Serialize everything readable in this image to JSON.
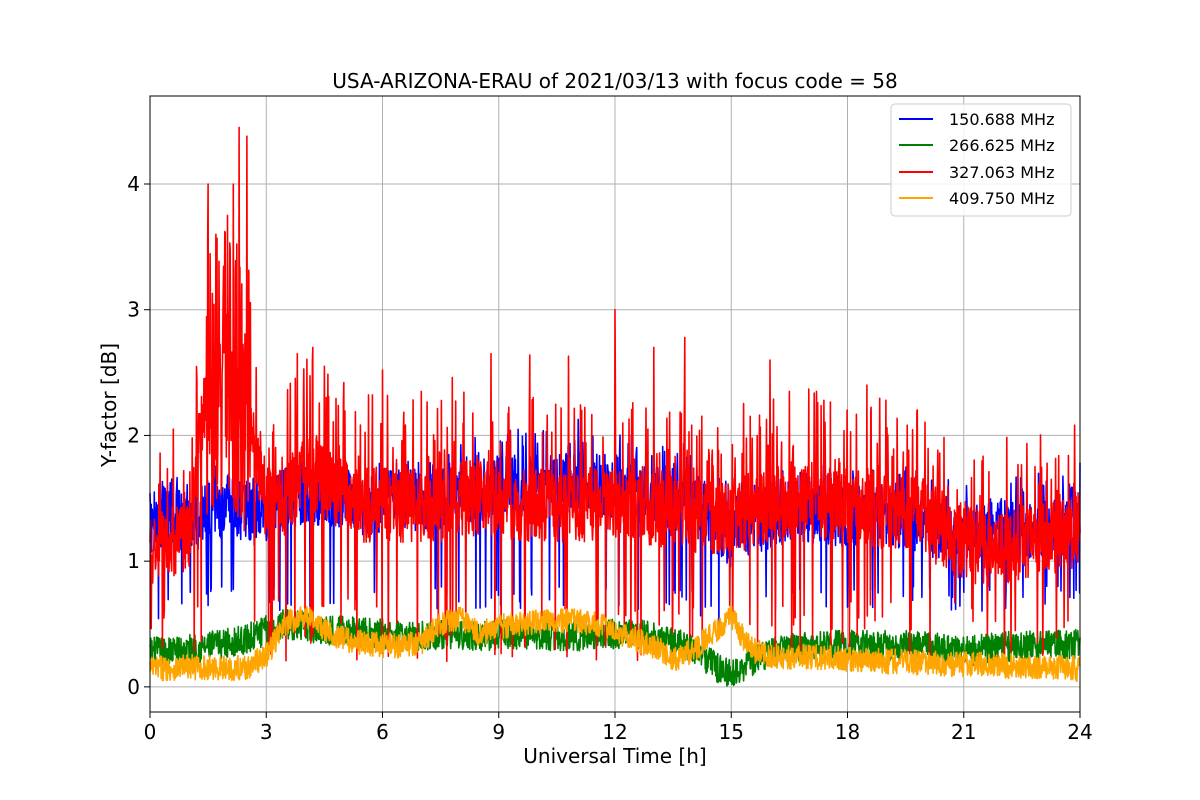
{
  "chart_data": {
    "type": "line",
    "title": "USA-ARIZONA-ERAU of 2021/03/13 with focus code = 58",
    "xlabel": "Universal Time [h]",
    "ylabel": "Y-factor [dB]",
    "xlim": [
      0,
      24
    ],
    "ylim": [
      -0.2,
      4.7
    ],
    "xticks": [
      0,
      3,
      6,
      9,
      12,
      15,
      18,
      21,
      24
    ],
    "xtick_labels": [
      "0",
      "3",
      "6",
      "9",
      "12",
      "15",
      "18",
      "21",
      "24"
    ],
    "yticks": [
      0,
      1,
      2,
      3,
      4
    ],
    "ytick_labels": [
      "0",
      "1",
      "2",
      "3",
      "4"
    ],
    "grid": true,
    "legend_position": "top-right",
    "series": [
      {
        "name": "150.688 MHz",
        "color": "#0000ff",
        "x": [
          0,
          0.5,
          1,
          1.5,
          2,
          2.5,
          3,
          3.5,
          4,
          4.5,
          5,
          5.5,
          6,
          6.5,
          7,
          7.5,
          8,
          8.5,
          9,
          9.5,
          10,
          10.5,
          11,
          11.5,
          12,
          12.5,
          13,
          13.5,
          14,
          14.5,
          15,
          15.5,
          16,
          16.5,
          17,
          17.5,
          18,
          18.5,
          19,
          19.5,
          20,
          20.5,
          21,
          21.5,
          22,
          22.5,
          23,
          23.5,
          24
        ],
        "y": [
          1.3,
          1.4,
          1.25,
          1.4,
          1.45,
          1.35,
          1.4,
          1.5,
          1.55,
          1.5,
          1.5,
          1.45,
          1.45,
          1.5,
          1.45,
          1.5,
          1.55,
          1.55,
          1.6,
          1.6,
          1.6,
          1.6,
          1.65,
          1.6,
          1.6,
          1.55,
          1.5,
          1.5,
          1.45,
          1.35,
          1.2,
          1.3,
          1.35,
          1.4,
          1.4,
          1.35,
          1.35,
          1.4,
          1.35,
          1.35,
          1.3,
          1.25,
          1.2,
          1.2,
          1.25,
          1.2,
          1.25,
          1.3,
          1.4
        ],
        "y_min": [
          0.4,
          0.6,
          0.6,
          0.6,
          0.6,
          0.6,
          0.6,
          0.6,
          0.6,
          0.6,
          0.6,
          0.6,
          0.6,
          0.6,
          0.6,
          0.6,
          0.6,
          0.6,
          0.6,
          0.6,
          0.6,
          0.6,
          0.6,
          0.6,
          0.6,
          0.6,
          0.6,
          0.6,
          0.6,
          0.45,
          0.35,
          0.6,
          0.6,
          0.6,
          0.6,
          0.6,
          0.6,
          0.6,
          0.6,
          0.6,
          0.6,
          0.6,
          0.6,
          0.6,
          0.6,
          0.6,
          0.6,
          0.6,
          0.6
        ],
        "y_max": [
          1.75,
          1.7,
          1.75,
          1.8,
          1.7,
          1.65,
          1.75,
          1.8,
          1.85,
          1.8,
          1.8,
          1.75,
          1.8,
          1.8,
          1.8,
          1.85,
          1.95,
          2.0,
          2.05,
          2.05,
          2.1,
          2.15,
          2.2,
          2.1,
          2.05,
          2.0,
          1.95,
          1.9,
          1.85,
          1.75,
          1.6,
          1.7,
          1.75,
          1.8,
          1.8,
          1.75,
          1.75,
          1.75,
          1.75,
          1.75,
          1.7,
          1.7,
          1.65,
          1.65,
          1.7,
          1.7,
          1.7,
          1.75,
          1.8
        ]
      },
      {
        "name": "266.625 MHz",
        "color": "#008000",
        "x": [
          0,
          0.5,
          1,
          1.5,
          2,
          2.5,
          3,
          3.5,
          4,
          4.5,
          5,
          5.5,
          6,
          6.5,
          7,
          7.5,
          8,
          8.5,
          9,
          9.5,
          10,
          10.5,
          11,
          11.5,
          12,
          12.5,
          13,
          13.5,
          14,
          14.5,
          15,
          15.5,
          16,
          16.5,
          17,
          17.5,
          18,
          18.5,
          19,
          19.5,
          20,
          20.5,
          21,
          21.5,
          22,
          22.5,
          23,
          23.5,
          24
        ],
        "y": [
          0.28,
          0.28,
          0.3,
          0.32,
          0.35,
          0.38,
          0.45,
          0.5,
          0.48,
          0.45,
          0.45,
          0.43,
          0.42,
          0.4,
          0.4,
          0.42,
          0.42,
          0.4,
          0.42,
          0.42,
          0.42,
          0.4,
          0.4,
          0.42,
          0.42,
          0.42,
          0.4,
          0.35,
          0.3,
          0.18,
          0.1,
          0.2,
          0.28,
          0.3,
          0.32,
          0.33,
          0.33,
          0.33,
          0.33,
          0.33,
          0.32,
          0.3,
          0.28,
          0.3,
          0.32,
          0.32,
          0.33,
          0.33,
          0.34
        ],
        "amplitude": 0.12
      },
      {
        "name": "327.063 MHz",
        "color": "#ff0000",
        "x": [
          0,
          0.5,
          1,
          1.5,
          2,
          2.5,
          3,
          3.5,
          4,
          4.5,
          5,
          5.5,
          6,
          6.5,
          7,
          7.5,
          8,
          8.5,
          9,
          9.5,
          10,
          10.5,
          11,
          11.5,
          12,
          12.5,
          13,
          13.5,
          14,
          14.5,
          15,
          15.5,
          16,
          16.5,
          17,
          17.5,
          18,
          18.5,
          19,
          19.5,
          20,
          20.5,
          21,
          21.5,
          22,
          22.5,
          23,
          23.5,
          24
        ],
        "y": [
          1.1,
          1.15,
          1.2,
          2.5,
          2.6,
          2.3,
          1.45,
          1.5,
          1.75,
          1.6,
          1.55,
          1.45,
          1.45,
          1.45,
          1.45,
          1.45,
          1.5,
          1.5,
          1.5,
          1.45,
          1.45,
          1.45,
          1.45,
          1.45,
          1.45,
          1.45,
          1.4,
          1.4,
          1.35,
          1.35,
          1.35,
          1.4,
          1.45,
          1.5,
          1.5,
          1.45,
          1.45,
          1.4,
          1.4,
          1.4,
          1.35,
          1.2,
          1.15,
          1.1,
          1.1,
          1.15,
          1.15,
          1.2,
          1.25
        ],
        "spikes": [
          {
            "x": 1.5,
            "y": 4.0
          },
          {
            "x": 1.7,
            "y": 3.6
          },
          {
            "x": 2.0,
            "y": 3.75
          },
          {
            "x": 2.15,
            "y": 4.0
          },
          {
            "x": 2.3,
            "y": 4.45
          },
          {
            "x": 2.5,
            "y": 4.38
          },
          {
            "x": 3.8,
            "y": 2.65
          },
          {
            "x": 4.2,
            "y": 2.7
          },
          {
            "x": 4.5,
            "y": 2.55
          },
          {
            "x": 5.0,
            "y": 2.42
          },
          {
            "x": 6.0,
            "y": 2.52
          },
          {
            "x": 7.0,
            "y": 2.35
          },
          {
            "x": 7.8,
            "y": 2.46
          },
          {
            "x": 8.8,
            "y": 2.65
          },
          {
            "x": 9.8,
            "y": 2.64
          },
          {
            "x": 10.8,
            "y": 2.63
          },
          {
            "x": 12.0,
            "y": 3.0
          },
          {
            "x": 13.0,
            "y": 2.7
          },
          {
            "x": 13.8,
            "y": 2.78
          },
          {
            "x": 16.0,
            "y": 2.6
          },
          {
            "x": 16.5,
            "y": 2.35
          },
          {
            "x": 17.2,
            "y": 2.35
          },
          {
            "x": 18.5,
            "y": 2.4
          }
        ]
      },
      {
        "name": "409.750 MHz",
        "color": "#ffa500",
        "x": [
          0,
          0.5,
          1,
          1.5,
          2,
          2.5,
          3,
          3.5,
          4,
          4.5,
          5,
          5.5,
          6,
          6.5,
          7,
          7.5,
          8,
          8.5,
          9,
          9.5,
          10,
          10.5,
          11,
          11.5,
          12,
          12.5,
          13,
          13.5,
          14,
          14.5,
          15,
          15.5,
          16,
          16.5,
          17,
          17.5,
          18,
          18.5,
          19,
          19.5,
          20,
          20.5,
          21,
          21.5,
          22,
          22.5,
          23,
          23.5,
          24
        ],
        "y": [
          0.15,
          0.15,
          0.16,
          0.15,
          0.15,
          0.15,
          0.25,
          0.5,
          0.58,
          0.45,
          0.38,
          0.35,
          0.33,
          0.33,
          0.35,
          0.5,
          0.55,
          0.42,
          0.48,
          0.5,
          0.52,
          0.52,
          0.52,
          0.5,
          0.45,
          0.38,
          0.32,
          0.22,
          0.28,
          0.42,
          0.55,
          0.3,
          0.25,
          0.24,
          0.24,
          0.23,
          0.22,
          0.22,
          0.2,
          0.2,
          0.19,
          0.18,
          0.18,
          0.18,
          0.17,
          0.16,
          0.16,
          0.16,
          0.14
        ],
        "amplitude": 0.1
      }
    ]
  }
}
